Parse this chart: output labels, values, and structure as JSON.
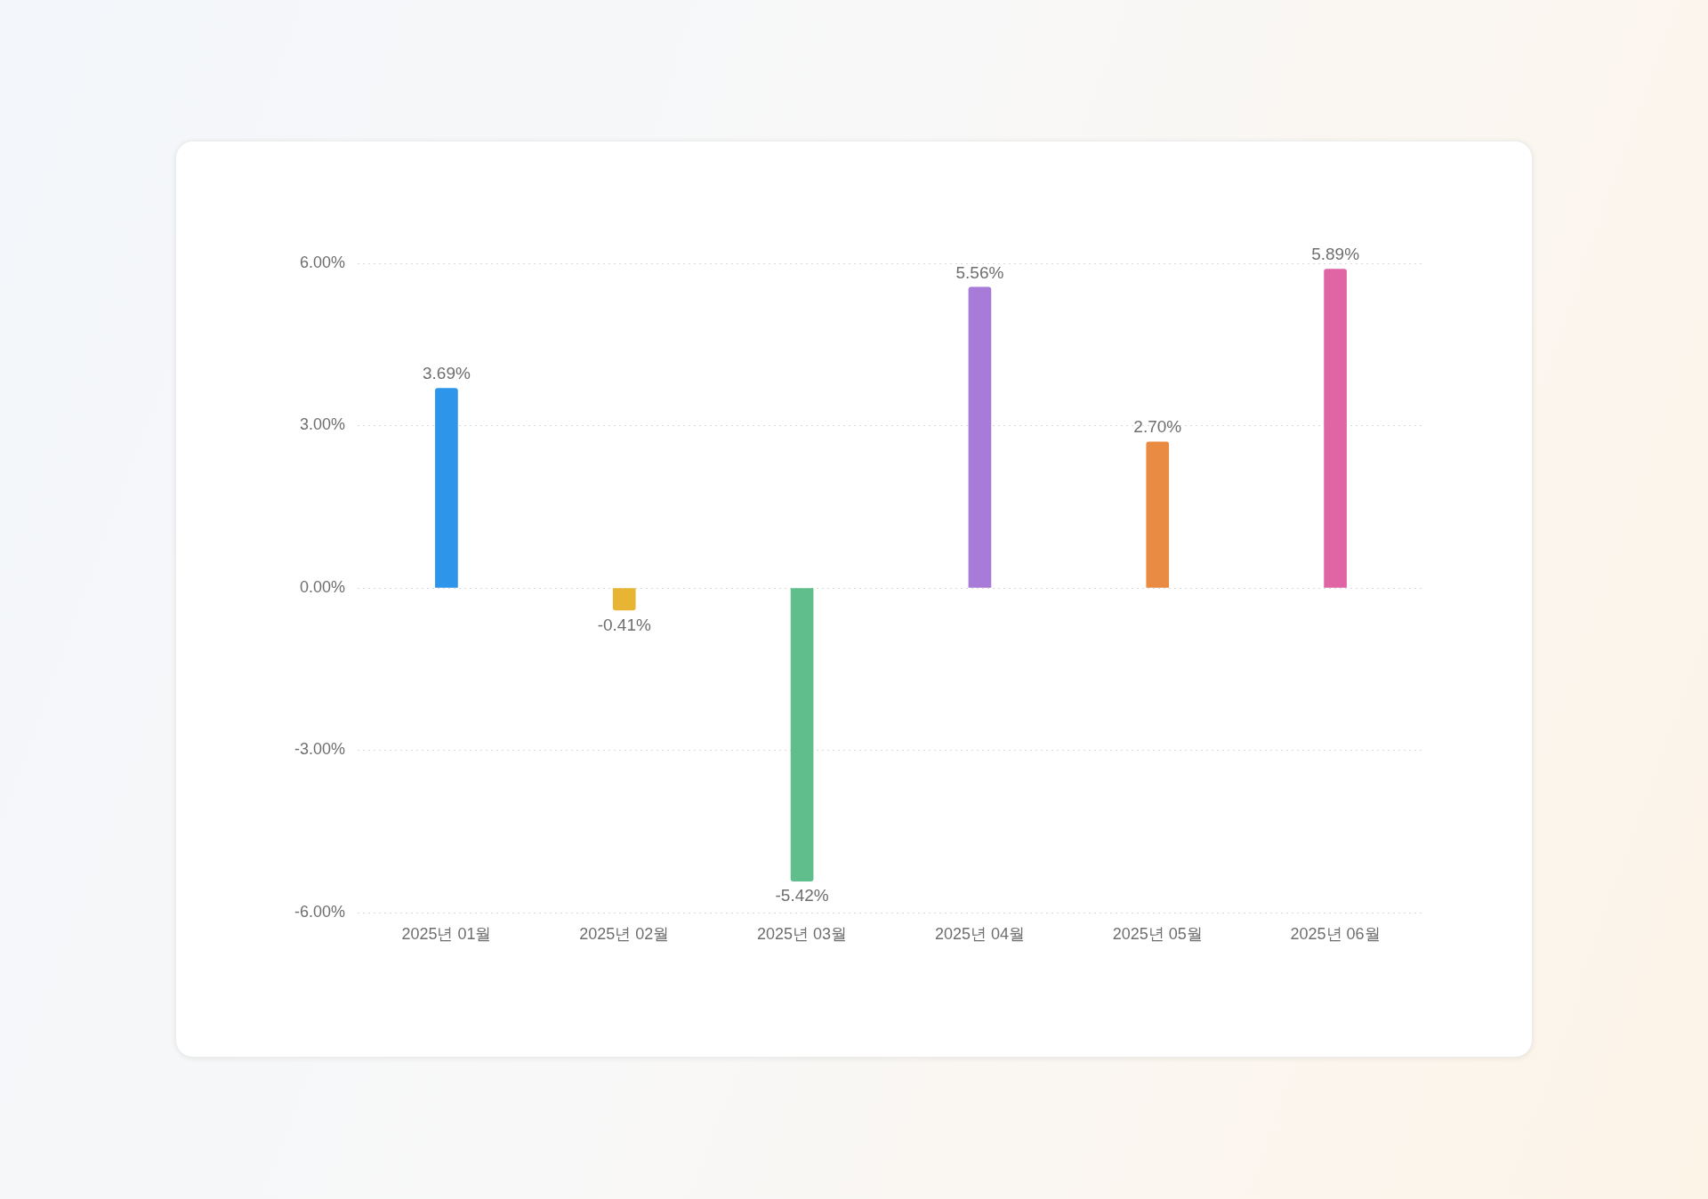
{
  "chart_data": {
    "type": "bar",
    "categories": [
      "2025년 01월",
      "2025년 02월",
      "2025년 03월",
      "2025년 04월",
      "2025년 05월",
      "2025년 06월"
    ],
    "values": [
      3.69,
      -0.41,
      -5.42,
      5.56,
      2.7,
      5.89
    ],
    "colors": [
      "#2d96ea",
      "#e8b434",
      "#5fbe8b",
      "#a87bd8",
      "#e98b42",
      "#df65a5"
    ],
    "value_labels": [
      "3.69%",
      "-0.41%",
      "-5.42%",
      "5.56%",
      "2.70%",
      "5.89%"
    ],
    "ylim": [
      -6,
      6
    ],
    "yticks": [
      {
        "value": -6,
        "label": "-6.00%"
      },
      {
        "value": -3,
        "label": "-3.00%"
      },
      {
        "value": 0,
        "label": "0.00%"
      },
      {
        "value": 3,
        "label": "3.00%"
      },
      {
        "value": 6,
        "label": "6.00%"
      }
    ],
    "grid": "y"
  }
}
